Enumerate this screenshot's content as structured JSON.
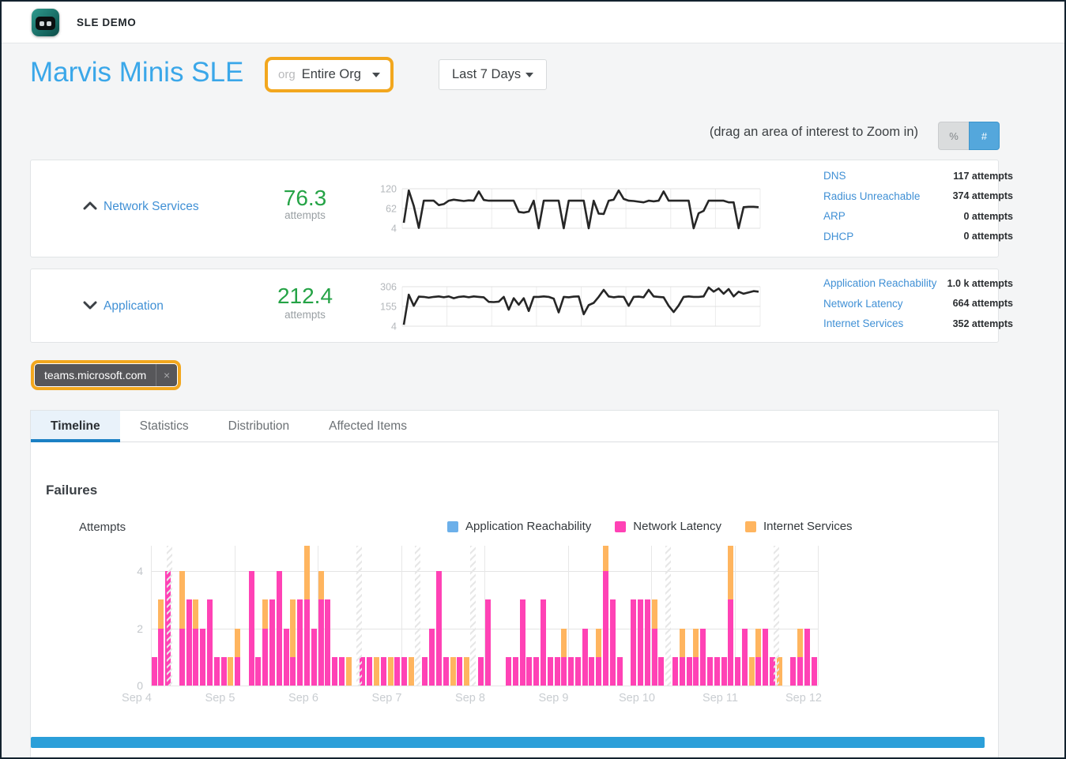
{
  "header": {
    "app_title": "SLE DEMO"
  },
  "page": {
    "title": "Marvis Minis SLE",
    "org_selector": {
      "prefix": "org",
      "value": "Entire Org"
    },
    "time_selector": {
      "value": "Last 7 Days"
    },
    "zoom_hint": "(drag an area of interest to Zoom in)",
    "unit_toggle": {
      "percent_label": "%",
      "count_label": "#",
      "active": "#"
    }
  },
  "colors": {
    "accent_blue": "#3aa7e9",
    "link_blue": "#4090d5",
    "score_green": "#25a346",
    "highlight_orange": "#f2a71e",
    "bar_pink": "#ff42b5",
    "bar_orange": "#ffb55f",
    "bar_blue": "#6cb0ea",
    "active_tab_blue": "#1b80c4",
    "toggle_active_blue": "#54a7dc",
    "scrollbar_blue": "#2b9fd9"
  },
  "panels": [
    {
      "name": "Network Services",
      "state": "expanded",
      "score": "76.3",
      "score_unit": "attempts",
      "sparkline": {
        "y_ticks": [
          "120",
          "62",
          "4"
        ],
        "y_min": 4,
        "y_max": 120,
        "values": [
          20,
          115,
          70,
          5,
          85,
          85,
          85,
          72,
          75,
          85,
          88,
          86,
          84,
          86,
          85,
          112,
          87,
          85,
          85,
          85,
          85,
          85,
          85,
          52,
          50,
          53,
          85,
          4,
          85,
          85,
          85,
          85,
          4,
          85,
          85,
          85,
          85,
          4,
          85,
          47,
          46,
          85,
          88,
          115,
          90,
          85,
          84,
          82,
          80,
          85,
          83,
          85,
          112,
          85,
          85,
          85,
          85,
          85,
          4,
          48,
          55,
          85,
          85,
          85,
          85,
          80,
          80,
          4,
          66,
          67,
          67,
          66
        ]
      },
      "metrics": [
        {
          "label": "DNS",
          "value": "117 attempts"
        },
        {
          "label": "Radius Unreachable",
          "value": "374 attempts"
        },
        {
          "label": "ARP",
          "value": "0 attempts"
        },
        {
          "label": "DHCP",
          "value": "0 attempts"
        }
      ]
    },
    {
      "name": "Application",
      "state": "collapsed",
      "score": "212.4",
      "score_unit": "attempts",
      "sparkline": {
        "y_ticks": [
          "306",
          "155",
          "4"
        ],
        "y_min": 4,
        "y_max": 306,
        "values": [
          15,
          245,
          160,
          230,
          228,
          222,
          228,
          232,
          225,
          232,
          218,
          228,
          232,
          225,
          232,
          228,
          225,
          190,
          188,
          192,
          228,
          130,
          218,
          168,
          218,
          120,
          228,
          228,
          232,
          228,
          215,
          110,
          228,
          225,
          230,
          232,
          95,
          165,
          182,
          228,
          282,
          232,
          225,
          230,
          228,
          160,
          228,
          230,
          225,
          282,
          232,
          228,
          225,
          160,
          112,
          162,
          228,
          232,
          228,
          228,
          232,
          300,
          268,
          292,
          252,
          288,
          232,
          268,
          252,
          262,
          272,
          268
        ]
      },
      "metrics": [
        {
          "label": "Application Reachability",
          "value": "1.0 k attempts"
        },
        {
          "label": "Network Latency",
          "value": "664 attempts"
        },
        {
          "label": "Internet Services",
          "value": "352 attempts"
        }
      ]
    }
  ],
  "filter_chip": {
    "label": "teams.microsoft.com",
    "remove": "×"
  },
  "tabs": {
    "items": [
      "Timeline",
      "Statistics",
      "Distribution",
      "Affected Items"
    ],
    "active_index": 0
  },
  "failures": {
    "title": "Failures",
    "y_axis_label": "Attempts",
    "chart_data": {
      "type": "bar",
      "stacked": true,
      "x_labels": [
        "Sep 4",
        "Sep 5",
        "Sep 6",
        "Sep 7",
        "Sep 8",
        "Sep 9",
        "Sep 10",
        "Sep 11",
        "Sep 12"
      ],
      "bars_per_day": 12,
      "y_ticks": [
        0,
        2,
        4
      ],
      "ylim": [
        0,
        4.9
      ],
      "grid": true,
      "legend_position": "top",
      "series": [
        {
          "name": "Application Reachability",
          "color": "#6cb0ea",
          "values": [
            0,
            0,
            0,
            0,
            0,
            0,
            0,
            0,
            0,
            0,
            0,
            0,
            0,
            0,
            0,
            0,
            0,
            0,
            0,
            0,
            0,
            0,
            0,
            0,
            0,
            0,
            0,
            0,
            0,
            0,
            0,
            0,
            0,
            0,
            0,
            0,
            0,
            0,
            0,
            0,
            0,
            0,
            0,
            0,
            0,
            0,
            0,
            0,
            0,
            0,
            0,
            0,
            0,
            0,
            0,
            0,
            0,
            0,
            0,
            0,
            0,
            0,
            0,
            0,
            0,
            0,
            0,
            0,
            0,
            0,
            0,
            0,
            0,
            0,
            0,
            0,
            0,
            0,
            0,
            0,
            0,
            0,
            0,
            0,
            0,
            0,
            0,
            0,
            0,
            0,
            0,
            0,
            0,
            0,
            0,
            0
          ]
        },
        {
          "name": "Network Latency",
          "color": "#ff42b5",
          "values": [
            1,
            2,
            4,
            0,
            2,
            3,
            2,
            2,
            3,
            1,
            1,
            0,
            1,
            0,
            4,
            1,
            2,
            3,
            4,
            2,
            1,
            3,
            3,
            2,
            3,
            3,
            1,
            1,
            0,
            0,
            1,
            1,
            0,
            1,
            0,
            1,
            1,
            0,
            0,
            1,
            2,
            4,
            1,
            0,
            1,
            0,
            0,
            1,
            3,
            0,
            0,
            1,
            1,
            3,
            1,
            1,
            3,
            1,
            1,
            1,
            1,
            1,
            2,
            1,
            1,
            4,
            3,
            1,
            0,
            3,
            3,
            3,
            2,
            1,
            0,
            1,
            1,
            1,
            1,
            2,
            1,
            1,
            1,
            3,
            1,
            2,
            0,
            1,
            2,
            1,
            0,
            0,
            1,
            1,
            2,
            1
          ]
        },
        {
          "name": "Internet Services",
          "color": "#ffb55f",
          "values": [
            0,
            1,
            0,
            0,
            2,
            0,
            1,
            0,
            0,
            0,
            0,
            1,
            1,
            0,
            0,
            0,
            1,
            0,
            0,
            0,
            2,
            0,
            2,
            0,
            1,
            0,
            0,
            0,
            1,
            0,
            0,
            0,
            1,
            0,
            1,
            0,
            0,
            1,
            0,
            0,
            0,
            0,
            0,
            1,
            0,
            1,
            0,
            0,
            0,
            0,
            0,
            0,
            0,
            0,
            0,
            0,
            0,
            0,
            0,
            1,
            0,
            0,
            0,
            0,
            1,
            1,
            0,
            0,
            0,
            0,
            0,
            0,
            1,
            0,
            0,
            0,
            1,
            0,
            1,
            0,
            0,
            0,
            0,
            2,
            0,
            0,
            1,
            1,
            0,
            0,
            1,
            0,
            0,
            1,
            0,
            0
          ]
        }
      ],
      "no_data_band_slots": [
        2.3,
        29.6,
        38.0,
        46.0,
        74.0,
        89.6
      ]
    }
  }
}
